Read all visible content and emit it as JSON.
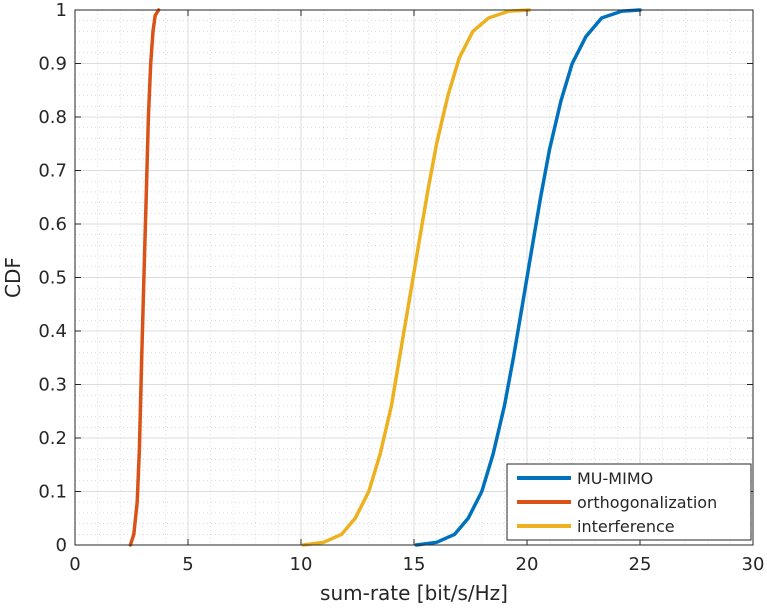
{
  "chart_data": {
    "type": "line",
    "title": "",
    "xlabel": "sum-rate [bit/s/Hz]",
    "ylabel": "CDF",
    "xlim": [
      0,
      30
    ],
    "ylim": [
      0,
      1
    ],
    "xticks": [
      0,
      5,
      10,
      15,
      20,
      25,
      30
    ],
    "xtick_labels": [
      "0",
      "5",
      "10",
      "15",
      "20",
      "25",
      "30"
    ],
    "yticks": [
      0,
      0.1,
      0.2,
      0.3,
      0.4,
      0.5,
      0.6,
      0.7,
      0.8,
      0.9,
      1
    ],
    "ytick_labels": [
      "0",
      "0.1",
      "0.2",
      "0.3",
      "0.4",
      "0.5",
      "0.6",
      "0.7",
      "0.8",
      "0.9",
      "1"
    ],
    "grid": true,
    "minor_grid": true,
    "legend_position": "bottom-right",
    "series": [
      {
        "name": "MU-MIMO",
        "color": "#0072BD",
        "x": [
          15.1,
          16.0,
          16.8,
          17.4,
          18.0,
          18.5,
          19.0,
          19.4,
          19.8,
          20.2,
          20.6,
          21.0,
          21.5,
          22.0,
          22.6,
          23.3,
          24.2,
          25.0
        ],
        "y": [
          0.0,
          0.005,
          0.02,
          0.05,
          0.1,
          0.17,
          0.26,
          0.35,
          0.45,
          0.55,
          0.65,
          0.74,
          0.83,
          0.9,
          0.95,
          0.985,
          0.998,
          1.0
        ]
      },
      {
        "name": "orthogonalization",
        "color": "#D95319",
        "x": [
          2.45,
          2.6,
          2.75,
          2.85,
          2.95,
          3.05,
          3.15,
          3.25,
          3.35,
          3.45,
          3.55,
          3.7
        ],
        "y": [
          0.0,
          0.02,
          0.08,
          0.18,
          0.35,
          0.5,
          0.65,
          0.8,
          0.9,
          0.96,
          0.99,
          1.0
        ]
      },
      {
        "name": "interference",
        "color": "#EDB120",
        "x": [
          10.1,
          11.0,
          11.8,
          12.4,
          13.0,
          13.5,
          14.0,
          14.4,
          14.8,
          15.2,
          15.6,
          16.0,
          16.5,
          17.0,
          17.6,
          18.3,
          19.2,
          20.1
        ],
        "y": [
          0.0,
          0.005,
          0.02,
          0.05,
          0.1,
          0.17,
          0.26,
          0.36,
          0.46,
          0.56,
          0.66,
          0.75,
          0.84,
          0.91,
          0.96,
          0.985,
          0.998,
          1.0
        ]
      }
    ]
  }
}
